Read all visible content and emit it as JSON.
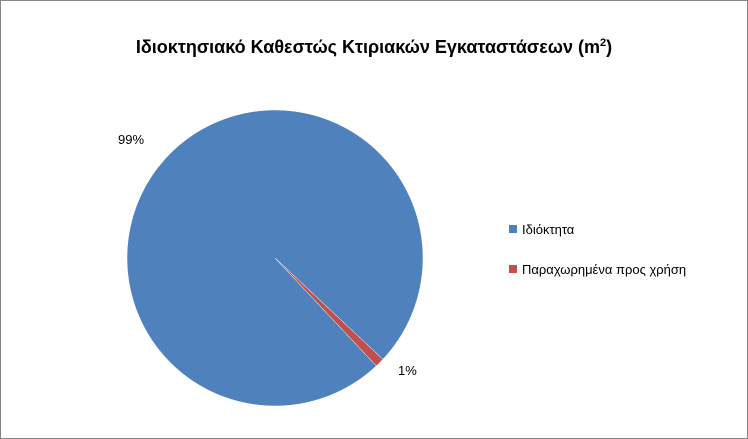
{
  "chart_data": {
    "type": "pie",
    "title": "Ιδιοκτησιακό Καθεστώς Κτιριακών Εγκαταστάσεων (m",
    "title_superscript": "2",
    "title_suffix": ")",
    "categories": [
      "Ιδιόκτητα",
      "Παραχωρημένα προς χρήση"
    ],
    "values": [
      99,
      1
    ],
    "data_labels": [
      "99%",
      "1%"
    ],
    "colors": [
      "#4F81BD",
      "#C0504D"
    ],
    "legend_position": "right"
  }
}
